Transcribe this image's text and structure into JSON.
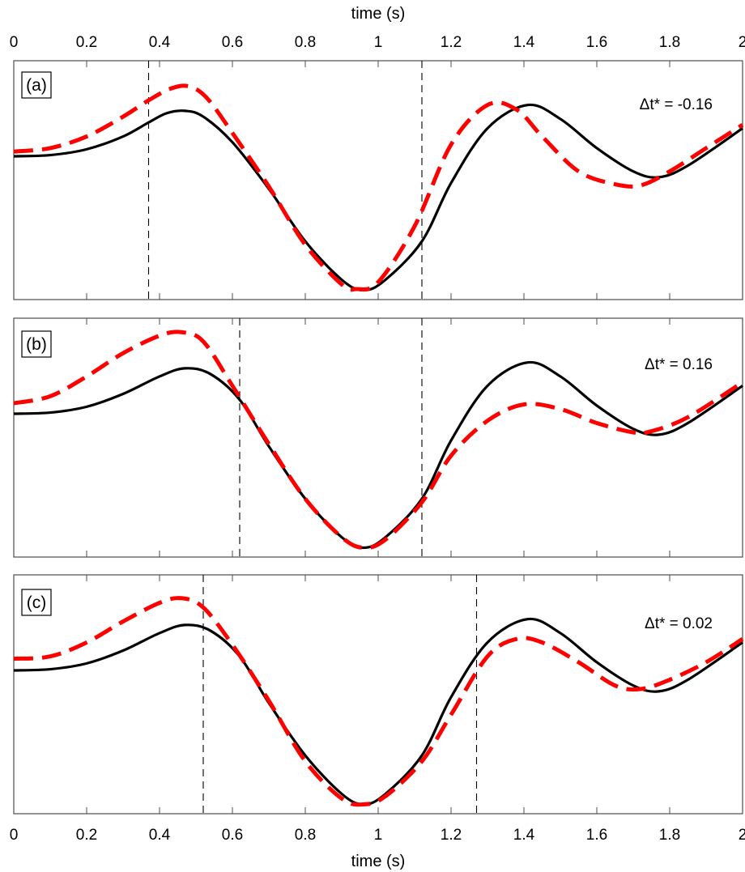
{
  "chart_data": [
    {
      "type": "line",
      "panel_label": "(a)",
      "annotation": "Δt* = -0.16",
      "xlabel_top": "time (s)",
      "xlim": [
        0,
        2
      ],
      "xticks": [
        "0",
        "0.2",
        "0.4",
        "0.6",
        "0.8",
        "1",
        "1.2",
        "1.4",
        "1.6",
        "1.8",
        "2"
      ],
      "ylim": [
        -1.05,
        1.0
      ],
      "y_ticks_labeled": false,
      "vlines": [
        0.37,
        1.12
      ],
      "series": [
        {
          "style": "solid-black",
          "x": [
            0,
            0.1,
            0.2,
            0.3,
            0.37,
            0.42,
            0.47,
            0.52,
            0.6,
            0.7,
            0.8,
            0.9,
            0.96,
            1.02,
            1.12,
            1.2,
            1.3,
            1.41,
            1.5,
            1.6,
            1.7,
            1.77,
            1.85,
            2.0
          ],
          "y": [
            0.18,
            0.19,
            0.24,
            0.35,
            0.47,
            0.55,
            0.57,
            0.52,
            0.3,
            -0.1,
            -0.55,
            -0.88,
            -0.97,
            -0.88,
            -0.55,
            -0.05,
            0.42,
            0.62,
            0.5,
            0.25,
            0.05,
            0.0,
            0.1,
            0.42
          ]
        },
        {
          "style": "dashed-red",
          "x": [
            0,
            0.1,
            0.2,
            0.3,
            0.37,
            0.43,
            0.48,
            0.53,
            0.6,
            0.7,
            0.8,
            0.9,
            0.94,
            1.0,
            1.1,
            1.2,
            1.3,
            1.38,
            1.45,
            1.55,
            1.65,
            1.72,
            1.8,
            1.9,
            2.0
          ],
          "y": [
            0.22,
            0.25,
            0.35,
            0.52,
            0.66,
            0.76,
            0.78,
            0.68,
            0.38,
            -0.08,
            -0.58,
            -0.92,
            -0.96,
            -0.9,
            -0.42,
            0.28,
            0.62,
            0.58,
            0.35,
            0.05,
            -0.06,
            -0.07,
            0.05,
            0.25,
            0.45
          ]
        }
      ]
    },
    {
      "type": "line",
      "panel_label": "(b)",
      "annotation": "Δt* = 0.16",
      "xlim": [
        0,
        2
      ],
      "ylim": [
        -1.05,
        1.0
      ],
      "y_ticks_labeled": false,
      "vlines": [
        0.62,
        1.12
      ],
      "series": [
        {
          "style": "solid-black",
          "x": [
            0,
            0.1,
            0.2,
            0.3,
            0.4,
            0.47,
            0.54,
            0.62,
            0.7,
            0.8,
            0.9,
            0.96,
            1.02,
            1.12,
            1.2,
            1.3,
            1.41,
            1.5,
            1.6,
            1.7,
            1.77,
            1.85,
            2.0
          ],
          "y": [
            0.18,
            0.19,
            0.24,
            0.35,
            0.5,
            0.57,
            0.52,
            0.3,
            -0.1,
            -0.55,
            -0.88,
            -0.97,
            -0.88,
            -0.55,
            -0.05,
            0.42,
            0.62,
            0.5,
            0.25,
            0.05,
            0.0,
            0.1,
            0.42
          ]
        },
        {
          "style": "dashed-red",
          "x": [
            0,
            0.1,
            0.2,
            0.3,
            0.4,
            0.46,
            0.52,
            0.6,
            0.7,
            0.8,
            0.9,
            0.96,
            1.02,
            1.12,
            1.2,
            1.3,
            1.4,
            1.5,
            1.6,
            1.7,
            1.75,
            1.85,
            2.0
          ],
          "y": [
            0.27,
            0.33,
            0.5,
            0.7,
            0.85,
            0.88,
            0.8,
            0.42,
            -0.08,
            -0.55,
            -0.88,
            -0.97,
            -0.9,
            -0.58,
            -0.18,
            0.12,
            0.26,
            0.22,
            0.1,
            0.02,
            0.03,
            0.15,
            0.45
          ]
        }
      ]
    },
    {
      "type": "line",
      "panel_label": "(c)",
      "annotation": "Δt* = 0.02",
      "xlabel": "time (s)",
      "xlim": [
        0,
        2
      ],
      "xticks": [
        "0",
        "0.2",
        "0.4",
        "0.6",
        "0.8",
        "1",
        "1.2",
        "1.4",
        "1.6",
        "1.8",
        "2"
      ],
      "ylim": [
        -1.05,
        1.0
      ],
      "y_ticks_labeled": false,
      "vlines": [
        0.52,
        1.27
      ],
      "series": [
        {
          "style": "solid-black",
          "x": [
            0,
            0.1,
            0.2,
            0.3,
            0.4,
            0.47,
            0.54,
            0.62,
            0.7,
            0.8,
            0.9,
            0.96,
            1.02,
            1.12,
            1.2,
            1.3,
            1.41,
            1.5,
            1.6,
            1.7,
            1.77,
            1.85,
            2.0
          ],
          "y": [
            0.18,
            0.19,
            0.24,
            0.35,
            0.5,
            0.57,
            0.52,
            0.3,
            -0.1,
            -0.55,
            -0.88,
            -0.97,
            -0.88,
            -0.55,
            -0.05,
            0.42,
            0.62,
            0.5,
            0.25,
            0.05,
            0.0,
            0.1,
            0.42
          ]
        },
        {
          "style": "dashed-red",
          "x": [
            0,
            0.1,
            0.2,
            0.3,
            0.4,
            0.46,
            0.52,
            0.6,
            0.7,
            0.8,
            0.9,
            0.96,
            1.02,
            1.12,
            1.2,
            1.3,
            1.38,
            1.45,
            1.55,
            1.65,
            1.72,
            1.8,
            1.9,
            2.0
          ],
          "y": [
            0.28,
            0.3,
            0.42,
            0.6,
            0.76,
            0.8,
            0.72,
            0.4,
            -0.08,
            -0.6,
            -0.92,
            -0.97,
            -0.9,
            -0.6,
            -0.2,
            0.3,
            0.45,
            0.42,
            0.25,
            0.05,
            0.02,
            0.1,
            0.25,
            0.45
          ]
        }
      ]
    }
  ],
  "colors": {
    "solid": "#000000",
    "dashed": "#ff0000",
    "vline": "#000000",
    "frame": "#4d4d4d"
  }
}
